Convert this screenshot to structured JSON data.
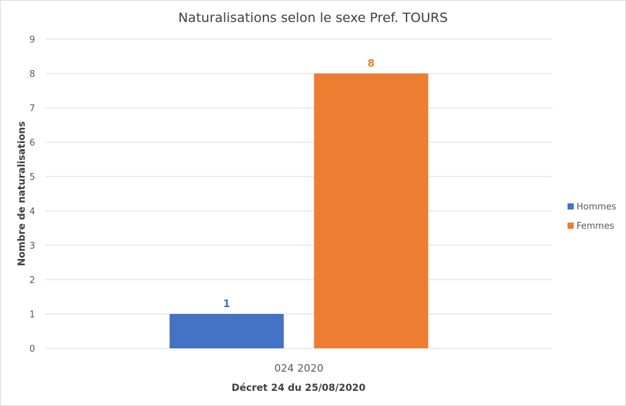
{
  "chart_data": {
    "type": "bar",
    "title": "Naturalisations selon le sexe  Pref. TOURS",
    "categories": [
      "024 2020"
    ],
    "xlabel": "Décret 24 du 25/08/2020",
    "ylabel": "Nombre de naturalisations",
    "ylim": [
      0,
      9
    ],
    "yticks": [
      "0",
      "1",
      "2",
      "3",
      "4",
      "5",
      "6",
      "7",
      "8",
      "9"
    ],
    "grid": true,
    "legend_position": "right",
    "series": [
      {
        "name": "Hommes",
        "values": [
          1
        ],
        "color": "#4472c4",
        "data_label": "1"
      },
      {
        "name": "Femmes",
        "values": [
          8
        ],
        "color": "#ed7d31",
        "data_label": "8"
      }
    ]
  }
}
